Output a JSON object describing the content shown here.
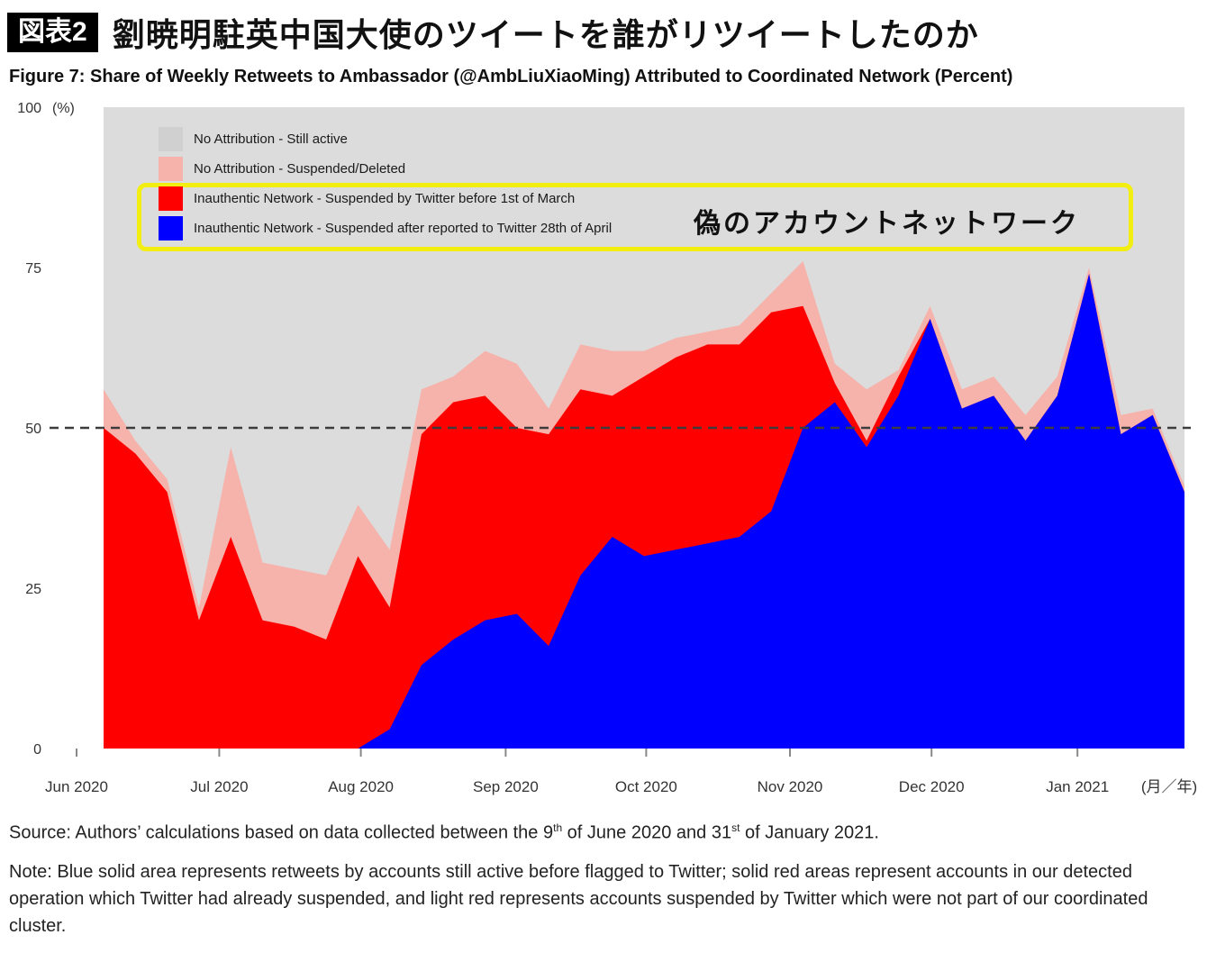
{
  "header": {
    "tag": "図表2",
    "title": "劉暁明駐英中国大使のツイートを誰がリツイートしたのか",
    "caption": "Figure 7: Share of Weekly Retweets to Ambassador (@AmbLiuXiaoMing) Attributed to Coordinated Network (Percent)"
  },
  "chart_data": {
    "type": "area",
    "stacked": true,
    "title": "Figure 7: Share of Weekly Retweets to Ambassador (@AmbLiuXiaoMing) Attributed to Coordinated Network (Percent)",
    "ylabel": "(%)",
    "x_axis_unit_label": "(月／年)",
    "ylim": [
      0,
      100
    ],
    "yticks": [
      0,
      25,
      50,
      75,
      100
    ],
    "x_tick_labels": [
      "Jun 2020",
      "Jul 2020",
      "Aug 2020",
      "Sep 2020",
      "Oct 2020",
      "Nov 2020",
      "Dec 2020",
      "Jan 2021"
    ],
    "x_granularity": "weekly",
    "reference_line_y": 50,
    "legend_position": "top-left-inside",
    "grid": false,
    "series": [
      {
        "name": "Inauthentic Network - Suspended after reported to Twitter 28th of April",
        "color": "#0000ff",
        "values": [
          0,
          0,
          0,
          0,
          0,
          0,
          0,
          0,
          0,
          3,
          13,
          17,
          20,
          21,
          16,
          27,
          33,
          30,
          31,
          32,
          33,
          37,
          50,
          54,
          47,
          55,
          67,
          53,
          55,
          48,
          55,
          74,
          49,
          52,
          40
        ]
      },
      {
        "name": "Inauthentic Network - Suspended by Twitter before 1st of March",
        "color": "#ff0000",
        "values": [
          50,
          46,
          40,
          20,
          33,
          20,
          19,
          17,
          30,
          19,
          36,
          37,
          35,
          29,
          33,
          29,
          22,
          28,
          30,
          31,
          30,
          31,
          19,
          3,
          1,
          3,
          0,
          0,
          0,
          0,
          0,
          0,
          0,
          0,
          0
        ]
      },
      {
        "name": "No Attribution - Suspended/Deleted",
        "color": "#f6b3ac",
        "values": [
          6,
          2,
          2,
          2,
          14,
          9,
          9,
          10,
          8,
          9,
          7,
          4,
          7,
          10,
          4,
          7,
          7,
          4,
          3,
          2,
          3,
          3,
          7,
          3,
          8,
          1,
          2,
          3,
          3,
          4,
          3,
          1,
          3,
          1,
          1
        ]
      },
      {
        "name": "No Attribution - Still active",
        "color": "#dcdcdc",
        "values_note": "remainder of stack up to 100"
      }
    ]
  },
  "legend": {
    "items": [
      {
        "label": "No Attribution - Still active",
        "color": "#d0d0d0"
      },
      {
        "label": "No Attribution - Suspended/Deleted",
        "color": "#f6b3ac"
      },
      {
        "label": "Inauthentic Network - Suspended by Twitter before 1st of March",
        "color": "#ff0000"
      },
      {
        "label": "Inauthentic Network - Suspended after reported to Twitter 28th of April",
        "color": "#0000ff"
      }
    ]
  },
  "annotation": {
    "fake_network_label": "偽のアカウントネットワーク",
    "box_color": "#f2ee12"
  },
  "footer": {
    "source_parts": {
      "p1": "Source: Authors’ calculations based on data collected between the 9",
      "sup1": "th",
      "p2": " of June 2020 and 31",
      "sup2": "st",
      "p3": " of January 2021."
    },
    "note": "Note: Blue solid area represents retweets by accounts still active before flagged to Twitter; solid red areas represent accounts in our detected operation which Twitter had already suspended, and light red represents accounts suspended by Twitter which were not part of our coordinated cluster."
  }
}
